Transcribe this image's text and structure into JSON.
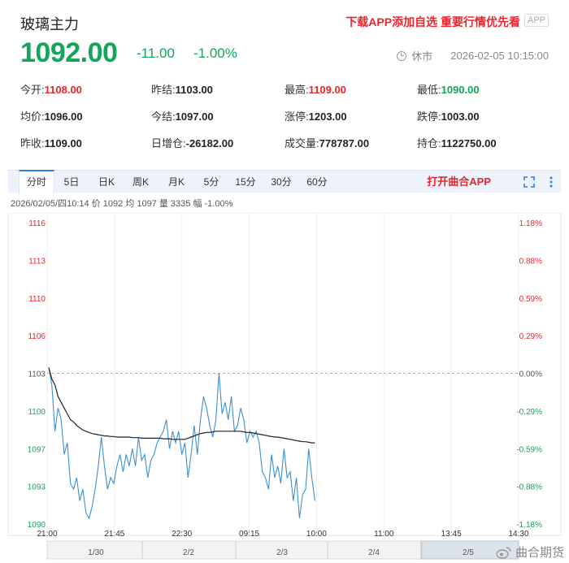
{
  "header": {
    "title": "玻璃主力",
    "promo": "下载APP添加自选 重要行情优先看",
    "app_badge": "APP",
    "price": "1092.00",
    "change": "-11.00",
    "change_pct": "-1.00%",
    "status": "休市",
    "datetime": "2026-02-05 10:15:00"
  },
  "stats": [
    [
      {
        "label": "今开:",
        "value": "1108.00",
        "color": "up"
      },
      {
        "label": "昨结:",
        "value": "1103.00",
        "color": ""
      },
      {
        "label": "最高:",
        "value": "1109.00",
        "color": "up"
      },
      {
        "label": "最低:",
        "value": "1090.00",
        "color": "down"
      }
    ],
    [
      {
        "label": "均价:",
        "value": "1096.00",
        "color": ""
      },
      {
        "label": "今结:",
        "value": "1097.00",
        "color": ""
      },
      {
        "label": "涨停:",
        "value": "1203.00",
        "color": ""
      },
      {
        "label": "跌停:",
        "value": "1003.00",
        "color": ""
      }
    ],
    [
      {
        "label": "昨收:",
        "value": "1109.00",
        "color": ""
      },
      {
        "label": "日增仓:",
        "value": "-26182.00",
        "color": ""
      },
      {
        "label": "成交量:",
        "value": "778787.00",
        "color": ""
      },
      {
        "label": "持仓:",
        "value": "1122750.00",
        "color": ""
      }
    ]
  ],
  "tabs": {
    "items": [
      "分时",
      "5日",
      "日K",
      "周K",
      "月K",
      "5分",
      "15分",
      "30分",
      "60分"
    ],
    "active_index": 0,
    "open_app": "打开曲合APP",
    "fullscreen_icon": "fullscreen-icon",
    "more_icon": "more-vertical-icon"
  },
  "info_line": "2026/02/05/四10:14  价 1092  均 1097  量 3335  幅 -1.00%",
  "watermark": "曲合期货",
  "colors": {
    "up": "#e8262d",
    "down": "#13a55a",
    "price_line": "#3d8fd6",
    "avg_line": "#222222",
    "tab_bg": "#eef3fb",
    "accent": "#2f7fe0"
  },
  "chart_data": {
    "type": "line",
    "title": "",
    "ylim": [
      1090,
      1116
    ],
    "prev_settle": 1103,
    "y_ticks_left": [
      "1116",
      "1113",
      "1110",
      "1106",
      "1103",
      "1100",
      "1097",
      "1093",
      "1090"
    ],
    "y_ticks_right": [
      "1.18%",
      "0.88%",
      "0.59%",
      "0.29%",
      "0.00%",
      "-0.29%",
      "-0.59%",
      "-0.88%",
      "-1.18%"
    ],
    "x_ticks": [
      "21:00",
      "21:45",
      "22:30",
      "09:15",
      "10:00",
      "11:00",
      "13:45",
      "14:30"
    ],
    "navigator_labels": [
      "1/30",
      "2/2",
      "2/3",
      "2/4",
      "2/5"
    ],
    "series": [
      {
        "values": [
          1103.5,
          1102,
          1098,
          1100,
          1099,
          1096,
          1097,
          1093.5,
          1093,
          1094,
          1092,
          1093,
          1091,
          1090.5,
          1091.5,
          1093,
          1095,
          1097.5,
          1095,
          1093,
          1094,
          1093.5,
          1095,
          1096,
          1094.5,
          1096,
          1095,
          1096.5,
          1095,
          1097.5,
          1095.5,
          1096,
          1094,
          1095.5,
          1096,
          1097,
          1097.5,
          1098,
          1099,
          1096.5,
          1098,
          1097,
          1098,
          1096,
          1097,
          1094,
          1096,
          1098.5,
          1096,
          1099,
          1101,
          1100,
          1098.5,
          1097.5,
          1099,
          1103,
          1099.5,
          1100.5,
          1099,
          1101,
          1098,
          1098.5,
          1100,
          1099,
          1097,
          1098,
          1097.5,
          1098,
          1097,
          1094.5,
          1094,
          1093,
          1096,
          1094,
          1095,
          1093.5,
          1096.5,
          1094,
          1094.5,
          1092,
          1094,
          1090.5,
          1092.5,
          1093,
          1096.5,
          1094,
          1092
        ]
      },
      {
        "values": [
          1103.5,
          1102.5,
          1102,
          1101,
          1100.5,
          1100,
          1099.5,
          1099,
          1098.8,
          1098.5,
          1098.3,
          1098.1,
          1098,
          1097.9,
          1097.8,
          1097.75,
          1097.7,
          1097.65,
          1097.6,
          1097.6,
          1097.55,
          1097.55,
          1097.5,
          1097.5,
          1097.5,
          1097.5,
          1097.5,
          1097.45,
          1097.45,
          1097.45,
          1097.4,
          1097.4,
          1097.4,
          1097.4,
          1097.4,
          1097.4,
          1097.4,
          1097.35,
          1097.35,
          1097.35,
          1097.3,
          1097.3,
          1097.3,
          1097.3,
          1097.3,
          1097.4,
          1097.5,
          1097.6,
          1097.7,
          1097.8,
          1097.85,
          1097.9,
          1097.9,
          1097.95,
          1098,
          1098,
          1098,
          1098,
          1098,
          1098,
          1098,
          1098,
          1098,
          1097.95,
          1097.9,
          1097.9,
          1097.85,
          1097.8,
          1097.75,
          1097.7,
          1097.65,
          1097.6,
          1097.55,
          1097.5,
          1097.5,
          1097.45,
          1097.4,
          1097.35,
          1097.3,
          1097.25,
          1097.2,
          1097.15,
          1097.1,
          1097.1,
          1097.05,
          1097,
          1097
        ]
      }
    ]
  }
}
